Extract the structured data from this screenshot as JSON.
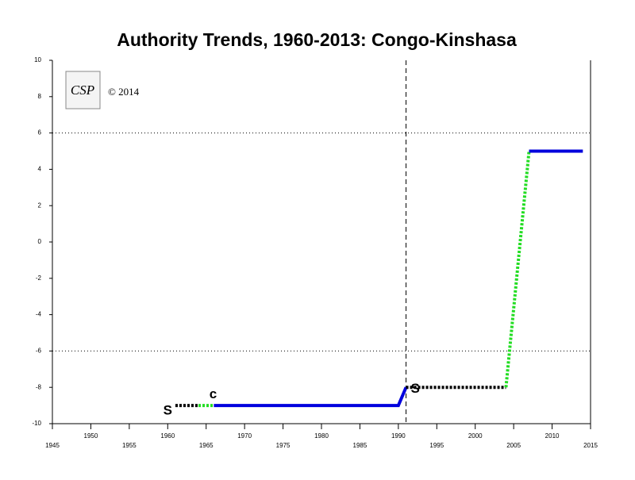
{
  "chart_data": {
    "type": "line",
    "title": "Authority Trends, 1960-2013: Congo-Kinshasa",
    "logo": "CSP",
    "copyright": "© 2014",
    "xlim": [
      1945,
      2015
    ],
    "xticks": [
      1945,
      1950,
      1955,
      1960,
      1965,
      1970,
      1975,
      1980,
      1985,
      1990,
      1995,
      2000,
      2005,
      2010,
      2015
    ],
    "ylim": [
      -10,
      10
    ],
    "yticks": [
      -10,
      -8,
      -6,
      -4,
      -2,
      0,
      2,
      4,
      6,
      8,
      10
    ],
    "hlines": [
      6,
      -6
    ],
    "vlines": [
      1991
    ],
    "series": [
      {
        "color": "#000000",
        "style": "dotted",
        "x": [
          1961,
          1964
        ],
        "values": [
          -9,
          -9
        ]
      },
      {
        "color": "#22dd22",
        "style": "dotted",
        "x": [
          1964,
          1966
        ],
        "values": [
          -9,
          -9
        ]
      },
      {
        "color": "#0000dd",
        "style": "solid",
        "x": [
          1966,
          1990,
          1991
        ],
        "values": [
          -9,
          -9,
          -8
        ]
      },
      {
        "color": "#000000",
        "style": "dotted",
        "x": [
          1991,
          2004
        ],
        "values": [
          -8,
          -8
        ]
      },
      {
        "color": "#22dd22",
        "style": "dotted",
        "x": [
          2004,
          2007
        ],
        "values": [
          -8,
          5
        ]
      },
      {
        "color": "#0000dd",
        "style": "solid",
        "x": [
          2007,
          2014
        ],
        "values": [
          5,
          5
        ]
      }
    ],
    "annotations": [
      {
        "text": "S",
        "x": 1960,
        "y": -9.3
      },
      {
        "text": "c",
        "x": 1965.9,
        "y": -8.4
      },
      {
        "text": "S",
        "x": 1992.2,
        "y": -8.1
      }
    ]
  }
}
